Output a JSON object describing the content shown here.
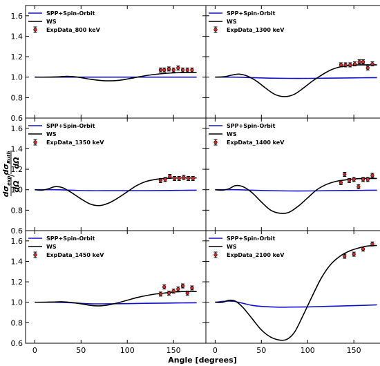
{
  "figure": {
    "xlabel": "Angle [degrees]",
    "ylabel_num": "dσ",
    "ylabel_num_sub": "exp",
    "ylabel_den_outer": "dΩ",
    "ylabel_inner_num": "dσ",
    "ylabel_inner_num_sub": "Ruth",
    "ylabel_inner_den": "dΩ",
    "colors": {
      "spp": "#1010cc",
      "ws": "#000000",
      "exp_fill": "#d62728",
      "exp_edge": "#000000"
    }
  },
  "chart_data": [
    {
      "type": "line",
      "panel": "top-left",
      "xlim": [
        -10,
        185
      ],
      "ylim": [
        0.6,
        1.7
      ],
      "xticks": [
        0,
        50,
        100,
        150
      ],
      "yticks": [
        0.6,
        0.8,
        1.0,
        1.2,
        1.4,
        1.6
      ],
      "legend": [
        "SPP+Spin-Orbit",
        "WS",
        "ExpData_800 keV"
      ],
      "series": [
        {
          "name": "SPP+Spin-Orbit",
          "x": [
            0,
            20,
            40,
            60,
            80,
            100,
            120,
            140,
            160,
            175
          ],
          "y": [
            1.0,
            1.0,
            1.0,
            1.0,
            1.0,
            1.0,
            1.0,
            1.0,
            1.0,
            1.0
          ]
        },
        {
          "name": "WS",
          "x": [
            0,
            15,
            25,
            35,
            45,
            60,
            75,
            90,
            105,
            120,
            135,
            150,
            165,
            175
          ],
          "y": [
            1.0,
            1.0,
            1.003,
            1.008,
            1.002,
            0.98,
            0.965,
            0.968,
            0.99,
            1.015,
            1.032,
            1.042,
            1.046,
            1.047
          ]
        },
        {
          "name": "ExpData_800 keV",
          "x": [
            136,
            140,
            145,
            150,
            155,
            160,
            165,
            170
          ],
          "y": [
            1.07,
            1.07,
            1.08,
            1.07,
            1.09,
            1.07,
            1.07,
            1.07
          ],
          "err": [
            0.02,
            0.02,
            0.02,
            0.02,
            0.02,
            0.02,
            0.02,
            0.02
          ]
        }
      ]
    },
    {
      "type": "line",
      "panel": "top-right",
      "xlim": [
        -10,
        185
      ],
      "ylim": [
        0.6,
        1.7
      ],
      "xticks": [
        0,
        50,
        100,
        150
      ],
      "yticks": [
        0.6,
        0.8,
        1.0,
        1.2,
        1.4,
        1.6
      ],
      "legend": [
        "SPP+Spin-Orbit",
        "WS",
        "ExpData_1300 keV"
      ],
      "series": [
        {
          "name": "SPP+Spin-Orbit",
          "x": [
            0,
            20,
            40,
            60,
            80,
            100,
            120,
            140,
            160,
            175
          ],
          "y": [
            1.0,
            1.0,
            0.995,
            0.99,
            0.988,
            0.988,
            0.99,
            0.992,
            0.994,
            0.995
          ]
        },
        {
          "name": "WS",
          "x": [
            0,
            10,
            18,
            26,
            35,
            45,
            55,
            65,
            75,
            85,
            95,
            105,
            115,
            125,
            135,
            145,
            155,
            165,
            175
          ],
          "y": [
            1.0,
            1.005,
            1.02,
            1.03,
            1.01,
            0.96,
            0.89,
            0.83,
            0.81,
            0.83,
            0.89,
            0.96,
            1.02,
            1.07,
            1.1,
            1.115,
            1.12,
            1.12,
            1.12
          ]
        },
        {
          "name": "ExpData_1300 keV",
          "x": [
            136,
            141,
            146,
            151,
            156,
            160,
            165,
            170
          ],
          "y": [
            1.12,
            1.12,
            1.12,
            1.13,
            1.15,
            1.15,
            1.09,
            1.13
          ],
          "err": [
            0.02,
            0.02,
            0.02,
            0.02,
            0.02,
            0.02,
            0.02,
            0.02
          ]
        }
      ]
    },
    {
      "type": "line",
      "panel": "middle-left",
      "xlim": [
        -10,
        185
      ],
      "ylim": [
        0.6,
        1.7
      ],
      "xticks": [
        0,
        50,
        100,
        150
      ],
      "yticks": [
        0.6,
        0.8,
        1.0,
        1.2,
        1.4,
        1.6
      ],
      "legend": [
        "SPP+Spin-Orbit",
        "WS",
        "ExpData_1350 keV"
      ],
      "series": [
        {
          "name": "SPP+Spin-Orbit",
          "x": [
            0,
            20,
            40,
            60,
            80,
            100,
            120,
            140,
            160,
            175
          ],
          "y": [
            1.0,
            1.0,
            0.995,
            0.99,
            0.99,
            0.99,
            0.99,
            0.992,
            0.994,
            0.995
          ]
        },
        {
          "name": "WS",
          "x": [
            0,
            8,
            15,
            22,
            30,
            40,
            50,
            60,
            70,
            80,
            90,
            100,
            110,
            120,
            130,
            140,
            150,
            160,
            170,
            175
          ],
          "y": [
            1.0,
            0.995,
            1.01,
            1.03,
            1.02,
            0.97,
            0.91,
            0.86,
            0.845,
            0.87,
            0.92,
            0.98,
            1.04,
            1.08,
            1.1,
            1.11,
            1.115,
            1.115,
            1.115,
            1.115
          ]
        },
        {
          "name": "ExpData_1350 keV",
          "x": [
            136,
            141,
            146,
            151,
            156,
            161,
            166,
            171
          ],
          "y": [
            1.09,
            1.1,
            1.13,
            1.11,
            1.11,
            1.12,
            1.11,
            1.11
          ],
          "err": [
            0.02,
            0.02,
            0.02,
            0.02,
            0.02,
            0.02,
            0.02,
            0.02
          ]
        }
      ]
    },
    {
      "type": "line",
      "panel": "middle-right",
      "xlim": [
        -10,
        185
      ],
      "ylim": [
        0.6,
        1.7
      ],
      "xticks": [
        0,
        50,
        100,
        150
      ],
      "yticks": [
        0.6,
        0.8,
        1.0,
        1.2,
        1.4,
        1.6
      ],
      "legend": [
        "SPP+Spin-Orbit",
        "WS",
        "ExpData_1400 keV"
      ],
      "series": [
        {
          "name": "SPP+Spin-Orbit",
          "x": [
            0,
            20,
            40,
            60,
            80,
            100,
            120,
            140,
            160,
            175
          ],
          "y": [
            1.0,
            1.0,
            0.995,
            0.99,
            0.988,
            0.988,
            0.99,
            0.992,
            0.994,
            0.995
          ]
        },
        {
          "name": "WS",
          "x": [
            0,
            8,
            15,
            22,
            30,
            40,
            50,
            60,
            70,
            80,
            90,
            100,
            110,
            120,
            130,
            140,
            150,
            160,
            170,
            175
          ],
          "y": [
            1.0,
            0.995,
            1.01,
            1.04,
            1.03,
            0.97,
            0.88,
            0.8,
            0.77,
            0.78,
            0.84,
            0.92,
            1.0,
            1.05,
            1.08,
            1.095,
            1.105,
            1.11,
            1.11,
            1.11
          ]
        },
        {
          "name": "ExpData_1400 keV",
          "x": [
            136,
            140,
            145,
            150,
            155,
            160,
            165,
            170
          ],
          "y": [
            1.07,
            1.15,
            1.09,
            1.1,
            1.03,
            1.1,
            1.1,
            1.14
          ],
          "err": [
            0.02,
            0.02,
            0.02,
            0.02,
            0.02,
            0.02,
            0.02,
            0.02
          ]
        }
      ]
    },
    {
      "type": "line",
      "panel": "bottom-left",
      "xlim": [
        -10,
        185
      ],
      "ylim": [
        0.6,
        1.7
      ],
      "xticks": [
        0,
        50,
        100,
        150
      ],
      "yticks": [
        0.6,
        0.8,
        1.0,
        1.2,
        1.4,
        1.6
      ],
      "legend": [
        "SPP+Spin-Orbit",
        "WS",
        "ExpData_1450 keV"
      ],
      "series": [
        {
          "name": "SPP+Spin-Orbit",
          "x": [
            0,
            20,
            40,
            60,
            80,
            100,
            120,
            140,
            160,
            175
          ],
          "y": [
            1.0,
            1.0,
            0.995,
            0.985,
            0.985,
            0.987,
            0.99,
            0.992,
            0.994,
            0.995
          ]
        },
        {
          "name": "WS",
          "x": [
            0,
            10,
            20,
            30,
            40,
            50,
            60,
            70,
            80,
            90,
            100,
            110,
            120,
            130,
            140,
            150,
            160,
            170,
            175
          ],
          "y": [
            1.0,
            1.0,
            1.003,
            1.005,
            0.998,
            0.985,
            0.97,
            0.965,
            0.975,
            0.995,
            1.02,
            1.045,
            1.065,
            1.08,
            1.09,
            1.1,
            1.105,
            1.105,
            1.105
          ]
        },
        {
          "name": "ExpData_1450 keV",
          "x": [
            136,
            140,
            145,
            150,
            155,
            160,
            165,
            170
          ],
          "y": [
            1.08,
            1.15,
            1.09,
            1.11,
            1.13,
            1.16,
            1.09,
            1.14
          ],
          "err": [
            0.02,
            0.02,
            0.02,
            0.02,
            0.02,
            0.02,
            0.02,
            0.02
          ]
        }
      ]
    },
    {
      "type": "line",
      "panel": "bottom-right",
      "xlim": [
        -10,
        185
      ],
      "ylim": [
        0.6,
        1.7
      ],
      "xticks": [
        0,
        50,
        100,
        150
      ],
      "yticks": [
        0.6,
        0.8,
        1.0,
        1.2,
        1.4,
        1.6
      ],
      "legend": [
        "SPP+Spin-Orbit",
        "WS",
        "ExpData_2100 keV"
      ],
      "series": [
        {
          "name": "SPP+Spin-Orbit",
          "x": [
            0,
            10,
            20,
            30,
            40,
            50,
            60,
            70,
            80,
            100,
            120,
            140,
            160,
            175
          ],
          "y": [
            1.0,
            1.01,
            1.01,
            0.99,
            0.97,
            0.96,
            0.955,
            0.952,
            0.953,
            0.955,
            0.96,
            0.965,
            0.97,
            0.975
          ]
        },
        {
          "name": "WS",
          "x": [
            0,
            8,
            15,
            22,
            30,
            40,
            50,
            60,
            70,
            78,
            86,
            95,
            105,
            115,
            125,
            135,
            145,
            155,
            165,
            175
          ],
          "y": [
            1.0,
            1.0,
            1.02,
            1.01,
            0.95,
            0.84,
            0.73,
            0.66,
            0.63,
            0.64,
            0.71,
            0.87,
            1.06,
            1.24,
            1.37,
            1.45,
            1.5,
            1.53,
            1.55,
            1.555
          ]
        },
        {
          "name": "ExpData_2100 keV",
          "x": [
            140,
            150,
            160,
            170
          ],
          "y": [
            1.45,
            1.47,
            1.52,
            1.57
          ],
          "err": [
            0.02,
            0.02,
            0.02,
            0.02
          ]
        }
      ]
    }
  ]
}
